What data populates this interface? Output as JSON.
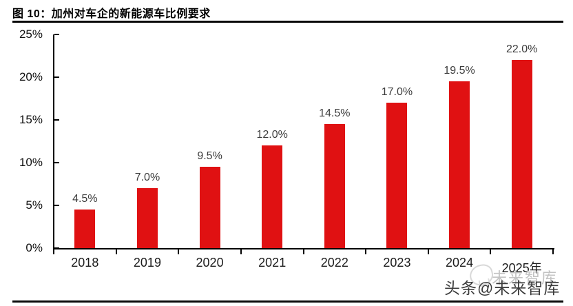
{
  "figure": {
    "title": "图 10：加州对车企的新能源车比例要求"
  },
  "chart_data": {
    "type": "bar",
    "title": "加州对车企的新能源车比例要求",
    "categories": [
      "2018",
      "2019",
      "2020",
      "2021",
      "2022",
      "2023",
      "2024",
      "2025年"
    ],
    "values": [
      4.5,
      7.0,
      9.5,
      12.0,
      14.5,
      17.0,
      19.5,
      22.0
    ],
    "value_labels": [
      "4.5%",
      "7.0%",
      "9.5%",
      "12.0%",
      "14.5%",
      "17.0%",
      "19.5%",
      "22.0%"
    ],
    "xlabel": "",
    "ylabel": "",
    "ylim": [
      0,
      25
    ],
    "yticks": [
      0,
      5,
      10,
      15,
      20,
      25
    ],
    "ytick_labels": [
      "0%",
      "5%",
      "10%",
      "15%",
      "20%",
      "25%"
    ],
    "bar_color": "#e01112",
    "grid": false,
    "legend_position": "none"
  },
  "watermark": {
    "background_text": "未来智库",
    "overlay_text": "头条@未来智库"
  }
}
